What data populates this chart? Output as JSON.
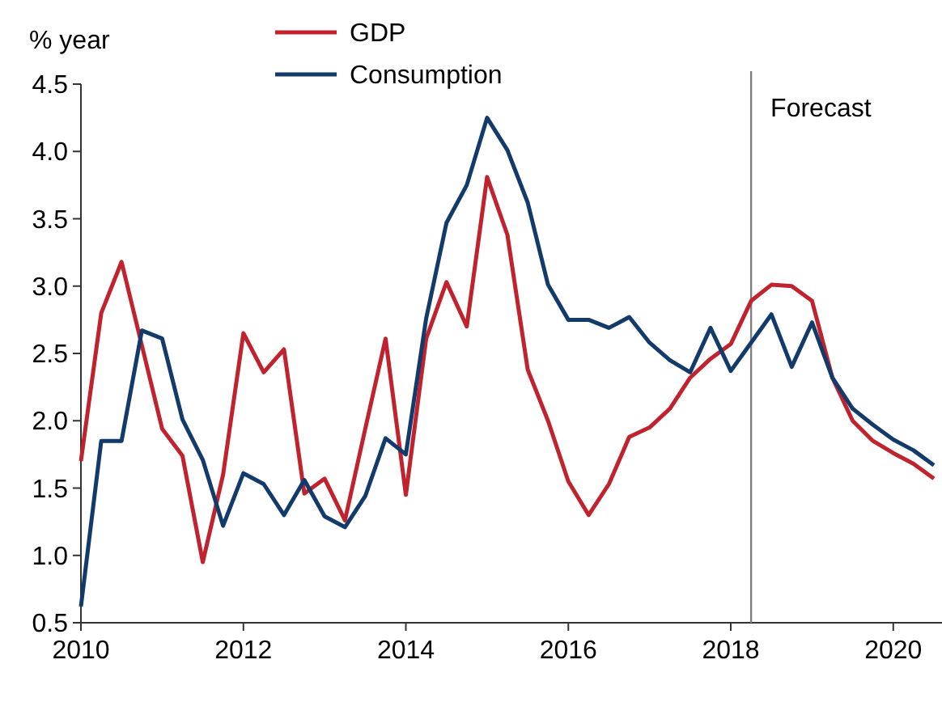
{
  "chart_data": {
    "type": "line",
    "ylabel": "% year",
    "x": [
      2010,
      2010.25,
      2010.5,
      2010.75,
      2011,
      2011.25,
      2011.5,
      2011.75,
      2012,
      2012.25,
      2012.5,
      2012.75,
      2013,
      2013.25,
      2013.5,
      2013.75,
      2014,
      2014.25,
      2014.5,
      2014.75,
      2015,
      2015.25,
      2015.5,
      2015.75,
      2016,
      2016.25,
      2016.5,
      2016.75,
      2017,
      2017.25,
      2017.5,
      2017.75,
      2018,
      2018.25,
      2018.5,
      2018.75,
      2019,
      2019.25,
      2019.5,
      2019.75,
      2020,
      2020.25,
      2020.5
    ],
    "series": [
      {
        "name": "GDP",
        "color": "#c0222e",
        "values": [
          1.7,
          2.8,
          3.18,
          2.56,
          1.94,
          1.74,
          0.95,
          1.6,
          2.65,
          2.36,
          2.53,
          1.46,
          1.57,
          1.26,
          1.94,
          2.61,
          1.45,
          2.61,
          3.03,
          2.7,
          3.81,
          3.38,
          2.38,
          2.0,
          1.55,
          1.3,
          1.53,
          1.88,
          1.95,
          2.09,
          2.32,
          2.46,
          2.57,
          2.89,
          3.01,
          3.0,
          2.89,
          2.32,
          2.0,
          1.85,
          1.76,
          1.68,
          1.57
        ]
      },
      {
        "name": "Consumption",
        "color": "#123a6b",
        "values": [
          0.62,
          1.85,
          1.85,
          2.67,
          2.61,
          2.01,
          1.71,
          1.22,
          1.61,
          1.53,
          1.3,
          1.56,
          1.29,
          1.21,
          1.44,
          1.87,
          1.75,
          2.76,
          3.47,
          3.75,
          4.25,
          4.01,
          3.62,
          3.01,
          2.75,
          2.75,
          2.69,
          2.77,
          2.58,
          2.45,
          2.36,
          2.69,
          2.37,
          2.58,
          2.79,
          2.4,
          2.73,
          2.32,
          2.09,
          1.97,
          1.86,
          1.78,
          1.67
        ]
      }
    ],
    "xlim": [
      2010,
      2020.6
    ],
    "xticks": [
      2010,
      2012,
      2014,
      2016,
      2018,
      2020
    ],
    "ylim": [
      0.5,
      4.5
    ],
    "yticks": [
      0.5,
      {
        "value": 1,
        "label": "1.0"
      },
      1.5,
      {
        "value": 2,
        "label": "2.0"
      },
      2.5,
      {
        "value": 3,
        "label": "3.0"
      },
      3.5,
      {
        "value": 4,
        "label": "4.0"
      },
      4.5
    ],
    "ref_lines": [
      {
        "axis": "x",
        "value": 2018.25,
        "label": "Forecast",
        "color": "#808080"
      }
    ],
    "legend": "top left",
    "grid": false
  }
}
